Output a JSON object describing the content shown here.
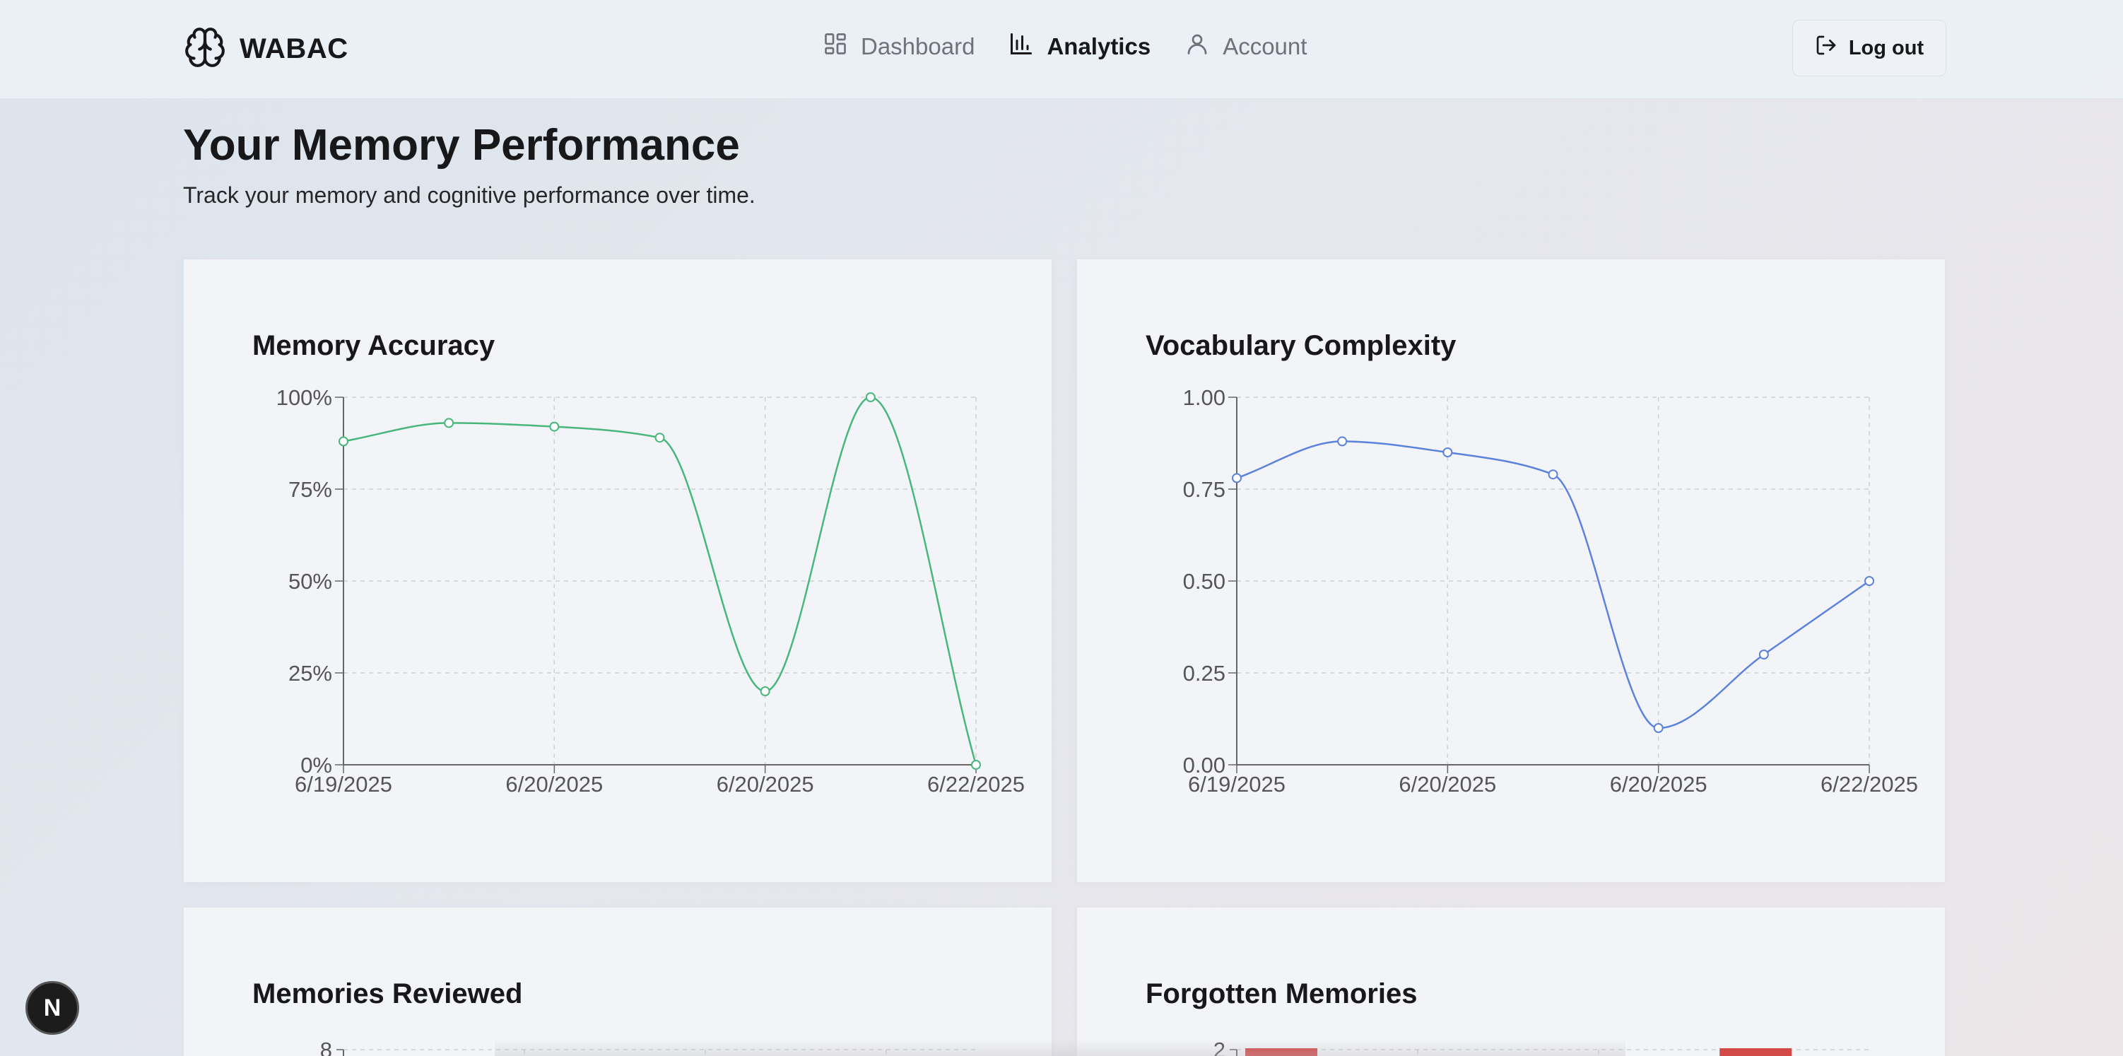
{
  "app": {
    "brand": "WABAC",
    "logo_icon": "brain-icon"
  },
  "nav": {
    "items": [
      {
        "label": "Dashboard",
        "icon": "dashboard-icon",
        "active": false
      },
      {
        "label": "Analytics",
        "icon": "bar-chart-icon",
        "active": true
      },
      {
        "label": "Account",
        "icon": "user-icon",
        "active": false
      }
    ],
    "logout_label": "Log out"
  },
  "page": {
    "title": "Your Memory Performance",
    "subtitle": "Track your memory and cognitive performance over time."
  },
  "fab_label": "N",
  "chart_data": [
    {
      "type": "line",
      "title": "Memory Accuracy",
      "color": "#48b77c",
      "x_ticks": [
        "6/19/2025",
        "6/20/2025",
        "6/20/2025",
        "6/22/2025"
      ],
      "y_ticks": [
        "100%",
        "75%",
        "50%",
        "25%",
        "0%"
      ],
      "ylim": [
        0,
        100
      ],
      "values": [
        88,
        93,
        92,
        89,
        20,
        100,
        0
      ],
      "grid": true
    },
    {
      "type": "line",
      "title": "Vocabulary Complexity",
      "color": "#5b82dc",
      "x_ticks": [
        "6/19/2025",
        "6/20/2025",
        "6/20/2025",
        "6/22/2025"
      ],
      "y_ticks": [
        "1.00",
        "0.75",
        "0.50",
        "0.25",
        "0.00"
      ],
      "ylim": [
        0,
        1
      ],
      "values": [
        0.78,
        0.88,
        0.85,
        0.79,
        0.1,
        0.3,
        0.5
      ],
      "grid": true
    },
    {
      "type": "bar",
      "title": "Memories Reviewed",
      "color": "#888888",
      "y_ticks": [
        "8"
      ],
      "values": [],
      "grid": true
    },
    {
      "type": "bar",
      "title": "Forgotten Memories",
      "color": "#d24a48",
      "y_ticks": [
        "2"
      ],
      "values": [
        2,
        0,
        0,
        2
      ],
      "grid": true
    }
  ]
}
